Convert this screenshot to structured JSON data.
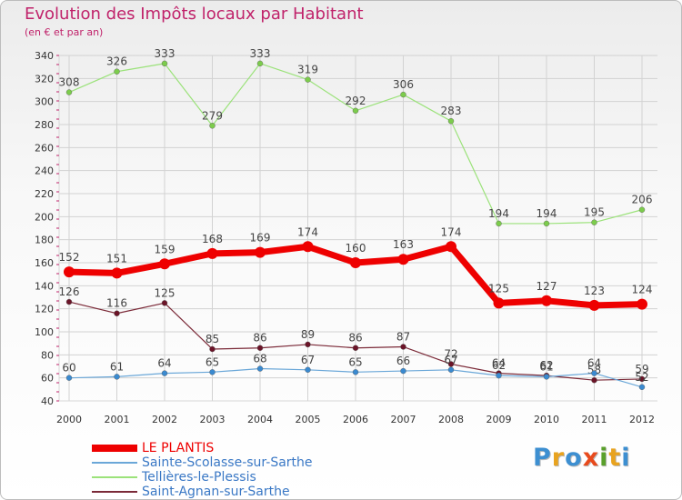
{
  "title": "Evolution des Impôts locaux par Habitant",
  "subtitle": "(en € et par an)",
  "logo": "Proxiti",
  "colors": {
    "title": "#c0226a",
    "axis": "#c0226a",
    "grid": "#d2d2d2",
    "logo_letters": [
      "#3d8fd1",
      "#e8a31f",
      "#3d8fd1",
      "#e84a1c",
      "#5aa02c",
      "#e8a31f",
      "#3d8fd1"
    ]
  },
  "chart_data": {
    "type": "line",
    "x": [
      "2000",
      "2001",
      "2002",
      "2003",
      "2004",
      "2005",
      "2006",
      "2007",
      "2008",
      "2009",
      "2010",
      "2011",
      "2012"
    ],
    "ylim": [
      40,
      340
    ],
    "yticks": [
      40,
      60,
      80,
      100,
      120,
      140,
      160,
      180,
      200,
      220,
      240,
      260,
      280,
      300,
      320,
      340
    ],
    "grid": true,
    "legend_position": "bottom-left",
    "series": [
      {
        "name": "Tellières-le-Plessis",
        "color": "#9be27a",
        "marker": "#7ccc4c",
        "width": 1.2,
        "values": [
          308,
          326,
          333,
          279,
          333,
          319,
          292,
          306,
          283,
          194,
          194,
          195,
          206
        ],
        "labels": [
          "308",
          "326",
          "333",
          "279",
          "333",
          "319",
          "292",
          "306",
          "283",
          "194",
          "194",
          "195",
          "206"
        ]
      },
      {
        "name": "LE PLANTIS",
        "color": "#ee0000",
        "marker": "#ee0000",
        "width": 7,
        "values": [
          152,
          151,
          159,
          168,
          169,
          174,
          160,
          163,
          174,
          125,
          127,
          123,
          124
        ],
        "labels": [
          "152",
          "151",
          "159",
          "168",
          "169",
          "174",
          "160",
          "163",
          "174",
          "125",
          "127",
          "123",
          "124"
        ]
      },
      {
        "name": "Saint-Agnan-sur-Sarthe",
        "color": "#7b2a38",
        "marker": "#6b1428",
        "width": 1.2,
        "values": [
          126,
          116,
          125,
          85,
          86,
          89,
          86,
          87,
          72,
          64,
          62,
          58,
          59
        ],
        "labels": [
          "126",
          "116",
          "125",
          "85",
          "86",
          "89",
          "86",
          "87",
          "72",
          "64",
          "62",
          "58",
          "59"
        ]
      },
      {
        "name": "Sainte-Scolasse-sur-Sarthe",
        "color": "#6aa7d8",
        "marker": "#3a8ad0",
        "width": 1.2,
        "values": [
          60,
          61,
          64,
          65,
          68,
          67,
          65,
          66,
          67,
          62,
          61,
          64,
          52
        ],
        "labels": [
          "60",
          "61",
          "64",
          "65",
          "68",
          "67",
          "65",
          "66",
          "67",
          "62",
          "61",
          "64",
          "52"
        ]
      }
    ],
    "legend": [
      {
        "name": "LE PLANTIS",
        "color": "#ee0000",
        "thick": true
      },
      {
        "name": "Sainte-Scolasse-sur-Sarthe",
        "color": "#6aa7d8",
        "thick": false
      },
      {
        "name": "Tellières-le-Plessis",
        "color": "#9be27a",
        "thick": false
      },
      {
        "name": "Saint-Agnan-sur-Sarthe",
        "color": "#7b2a38",
        "thick": false
      }
    ]
  }
}
